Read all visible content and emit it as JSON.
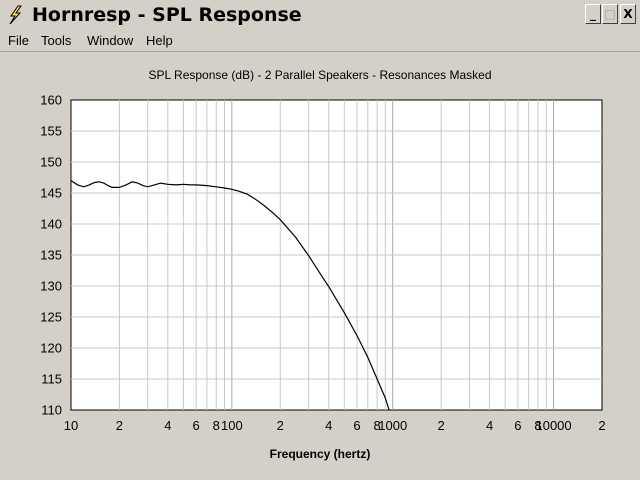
{
  "window": {
    "title": "Hornresp - SPL Response",
    "minimize_label": "_",
    "maximize_label": "□",
    "close_label": "X"
  },
  "menu": {
    "items": [
      "File",
      "Tools",
      "Window",
      "Help"
    ]
  },
  "colors": {
    "window_bg": "#d4d0c8",
    "plot_bg": "#ffffff",
    "grid": "#c8c8c8",
    "curve": "#000000"
  },
  "chart_data": {
    "type": "line",
    "title": "SPL Response (dB) - 2 Parallel Speakers - Resonances Masked",
    "xlabel": "Frequency (hertz)",
    "ylabel": "",
    "xscale": "log",
    "xlim": [
      10,
      20000
    ],
    "ylim": [
      110,
      160
    ],
    "grid": true,
    "y_ticks": [
      110,
      115,
      120,
      125,
      130,
      135,
      140,
      145,
      150,
      155,
      160
    ],
    "x_tick_labels": [
      {
        "value": 10,
        "label": "10"
      },
      {
        "value": 20,
        "label": "2"
      },
      {
        "value": 40,
        "label": "4"
      },
      {
        "value": 60,
        "label": "6"
      },
      {
        "value": 80,
        "label": "8"
      },
      {
        "value": 100,
        "label": "100"
      },
      {
        "value": 200,
        "label": "2"
      },
      {
        "value": 400,
        "label": "4"
      },
      {
        "value": 600,
        "label": "6"
      },
      {
        "value": 800,
        "label": "8"
      },
      {
        "value": 1000,
        "label": "1000"
      },
      {
        "value": 2000,
        "label": "2"
      },
      {
        "value": 4000,
        "label": "4"
      },
      {
        "value": 6000,
        "label": "6"
      },
      {
        "value": 8000,
        "label": "8"
      },
      {
        "value": 10000,
        "label": "10000"
      },
      {
        "value": 20000,
        "label": "2"
      }
    ],
    "series": [
      {
        "x": [
          10,
          11,
          12,
          13,
          14,
          15,
          16,
          17,
          18,
          20,
          22,
          24,
          26,
          28,
          30,
          33,
          36,
          40,
          45,
          50,
          55,
          60,
          70,
          80,
          90,
          100,
          110,
          125,
          140,
          160,
          180,
          200,
          250,
          300,
          350,
          400,
          500,
          600,
          700,
          800,
          900,
          950
        ],
        "y": [
          147.0,
          146.3,
          146.0,
          146.3,
          146.7,
          146.8,
          146.6,
          146.2,
          145.9,
          145.9,
          146.3,
          146.8,
          146.6,
          146.2,
          146.0,
          146.3,
          146.6,
          146.4,
          146.3,
          146.4,
          146.3,
          146.3,
          146.2,
          146.0,
          145.8,
          145.6,
          145.3,
          144.8,
          144.0,
          142.9,
          141.8,
          140.7,
          137.8,
          134.9,
          132.2,
          129.9,
          125.7,
          122.0,
          118.5,
          115.0,
          111.9,
          110.0
        ]
      }
    ]
  }
}
